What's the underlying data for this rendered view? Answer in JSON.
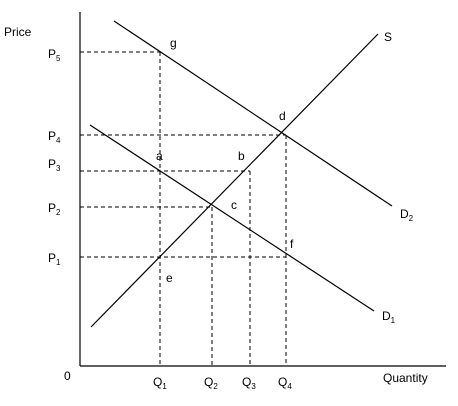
{
  "axes": {
    "y_label": "Price",
    "x_label": "Quantity",
    "origin_label": "0"
  },
  "price_ticks": [
    {
      "base": "P",
      "sub": "5"
    },
    {
      "base": "P",
      "sub": "4"
    },
    {
      "base": "P",
      "sub": "3"
    },
    {
      "base": "P",
      "sub": "2"
    },
    {
      "base": "P",
      "sub": "1"
    }
  ],
  "quantity_ticks": [
    {
      "base": "Q",
      "sub": "1"
    },
    {
      "base": "Q",
      "sub": "2"
    },
    {
      "base": "Q",
      "sub": "3"
    },
    {
      "base": "Q",
      "sub": "4"
    }
  ],
  "curves": {
    "supply": {
      "base": "S",
      "sub": ""
    },
    "demand_high": {
      "base": "D",
      "sub": "2"
    },
    "demand_low": {
      "base": "D",
      "sub": "1"
    }
  },
  "points": {
    "g": "g",
    "d": "d",
    "a": "a",
    "b": "b",
    "c": "c",
    "f": "f",
    "e": "e"
  }
}
